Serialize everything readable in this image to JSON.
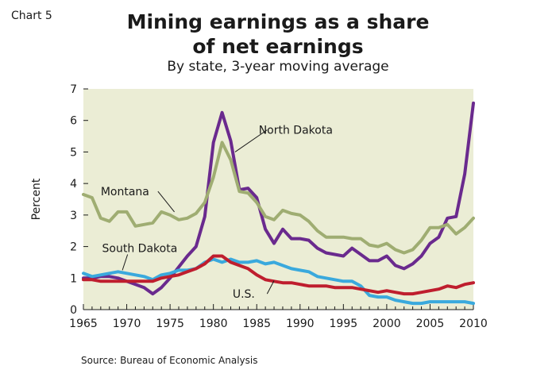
{
  "chart_number": "Chart 5",
  "chart_data": {
    "type": "line",
    "title_line1": "Mining earnings as a share",
    "title_line2": "of net earnings",
    "subtitle": "By state, 3-year moving average",
    "ylabel": "Percent",
    "xlabel": "",
    "xlim": [
      1965,
      2010
    ],
    "ylim": [
      0,
      7
    ],
    "x_ticks": [
      "1965",
      "1970",
      "1975",
      "1980",
      "1985",
      "1990",
      "1995",
      "2000",
      "2005",
      "2010"
    ],
    "y_ticks": [
      "0",
      "1",
      "2",
      "3",
      "4",
      "5",
      "6",
      "7"
    ],
    "grid": false,
    "source": "Source: Bureau of Economic Analysis",
    "background_color": "#ebedd5",
    "x": [
      1965,
      1966,
      1967,
      1968,
      1969,
      1970,
      1971,
      1972,
      1973,
      1974,
      1975,
      1976,
      1977,
      1978,
      1979,
      1980,
      1981,
      1982,
      1983,
      1984,
      1985,
      1986,
      1987,
      1988,
      1989,
      1990,
      1991,
      1992,
      1993,
      1994,
      1995,
      1996,
      1997,
      1998,
      1999,
      2000,
      2001,
      2002,
      2003,
      2004,
      2005,
      2006,
      2007,
      2008,
      2009,
      2010
    ],
    "series": [
      {
        "name": "North Dakota",
        "color": "#6a2a8e",
        "values": [
          1.0,
          1.0,
          1.05,
          1.05,
          1.0,
          0.9,
          0.8,
          0.7,
          0.5,
          0.7,
          1.0,
          1.35,
          1.7,
          2.0,
          2.95,
          5.3,
          6.25,
          5.35,
          3.8,
          3.85,
          3.55,
          2.55,
          2.1,
          2.55,
          2.25,
          2.25,
          2.2,
          1.95,
          1.8,
          1.75,
          1.7,
          1.95,
          1.75,
          1.55,
          1.55,
          1.7,
          1.4,
          1.3,
          1.45,
          1.7,
          2.1,
          2.3,
          2.9,
          2.95,
          4.3,
          6.55
        ]
      },
      {
        "name": "Montana",
        "color": "#9fad72",
        "values": [
          3.65,
          3.55,
          2.9,
          2.8,
          3.1,
          3.1,
          2.65,
          2.7,
          2.75,
          3.1,
          3.0,
          2.85,
          2.9,
          3.05,
          3.4,
          4.2,
          5.3,
          4.75,
          3.75,
          3.7,
          3.4,
          2.95,
          2.85,
          3.15,
          3.05,
          3.0,
          2.8,
          2.5,
          2.3,
          2.3,
          2.3,
          2.25,
          2.25,
          2.05,
          2.0,
          2.1,
          1.9,
          1.8,
          1.9,
          2.2,
          2.6,
          2.6,
          2.7,
          2.4,
          2.6,
          2.9
        ]
      },
      {
        "name": "South Dakota",
        "color": "#3aa9dd",
        "values": [
          1.15,
          1.05,
          1.1,
          1.15,
          1.2,
          1.15,
          1.1,
          1.05,
          0.95,
          1.1,
          1.15,
          1.25,
          1.25,
          1.3,
          1.5,
          1.6,
          1.5,
          1.6,
          1.5,
          1.5,
          1.55,
          1.45,
          1.5,
          1.4,
          1.3,
          1.25,
          1.2,
          1.05,
          1.0,
          0.95,
          0.9,
          0.9,
          0.75,
          0.45,
          0.4,
          0.4,
          0.3,
          0.25,
          0.2,
          0.2,
          0.25,
          0.25,
          0.25,
          0.25,
          0.25,
          0.2
        ]
      },
      {
        "name": "U.S.",
        "color": "#bf1e2e",
        "values": [
          0.95,
          0.95,
          0.9,
          0.9,
          0.9,
          0.9,
          0.9,
          0.9,
          0.9,
          1.0,
          1.05,
          1.1,
          1.2,
          1.3,
          1.45,
          1.7,
          1.7,
          1.5,
          1.4,
          1.3,
          1.1,
          0.95,
          0.9,
          0.85,
          0.85,
          0.8,
          0.75,
          0.75,
          0.75,
          0.7,
          0.7,
          0.7,
          0.65,
          0.6,
          0.55,
          0.6,
          0.55,
          0.5,
          0.5,
          0.55,
          0.6,
          0.65,
          0.75,
          0.7,
          0.8,
          0.85
        ]
      }
    ],
    "series_labels": [
      {
        "text": "North Dakota",
        "x": 1989.5,
        "y": 5.7,
        "leader": [
          [
            1986.2,
            5.7
          ],
          [
            1982.5,
            5.0
          ]
        ]
      },
      {
        "text": "Montana",
        "x": 1969.8,
        "y": 3.75,
        "leader": [
          [
            1973.6,
            3.75
          ],
          [
            1975.5,
            3.1
          ]
        ]
      },
      {
        "text": "South Dakota",
        "x": 1971.5,
        "y": 1.95,
        "leader": [
          [
            1970.1,
            1.75
          ],
          [
            1969.5,
            1.25
          ]
        ]
      },
      {
        "text": "U.S.",
        "x": 1983.5,
        "y": 0.5,
        "leader": [
          [
            1986.2,
            0.5
          ],
          [
            1987.0,
            0.92
          ]
        ]
      }
    ]
  }
}
